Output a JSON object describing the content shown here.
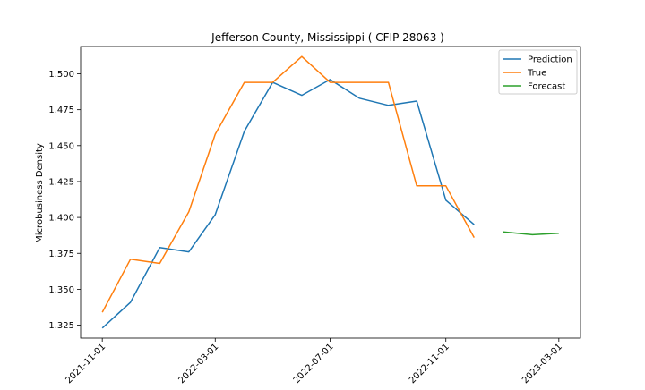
{
  "chart_data": {
    "type": "line",
    "title": "Jefferson County, Mississippi ( CFIP 28063 )",
    "xlabel": "",
    "ylabel": "Microbusiness Density",
    "x_ticks": [
      "2021-11-01",
      "2022-03-01",
      "2022-07-01",
      "2022-11-01",
      "2023-03-01"
    ],
    "y_ticks": [
      "1.325",
      "1.350",
      "1.375",
      "1.400",
      "1.425",
      "1.450",
      "1.475",
      "1.500"
    ],
    "xlim": [
      "2021-10-09",
      "2023-03-24"
    ],
    "ylim": [
      1.316,
      1.519
    ],
    "grid": false,
    "legend_position": "top-right",
    "series": [
      {
        "name": "Prediction",
        "color": "#1f77b4",
        "x": [
          "2021-11-01",
          "2021-12-01",
          "2022-01-01",
          "2022-02-01",
          "2022-03-01",
          "2022-04-01",
          "2022-05-01",
          "2022-06-01",
          "2022-07-01",
          "2022-08-01",
          "2022-09-01",
          "2022-10-01",
          "2022-11-01",
          "2022-12-01"
        ],
        "values": [
          1.323,
          1.341,
          1.379,
          1.376,
          1.402,
          1.46,
          1.494,
          1.485,
          1.496,
          1.483,
          1.478,
          1.481,
          1.412,
          1.395
        ]
      },
      {
        "name": "True",
        "color": "#ff7f0e",
        "x": [
          "2021-11-01",
          "2021-12-01",
          "2022-01-01",
          "2022-02-01",
          "2022-03-01",
          "2022-04-01",
          "2022-05-01",
          "2022-06-01",
          "2022-07-01",
          "2022-08-01",
          "2022-09-01",
          "2022-10-01",
          "2022-11-01",
          "2022-12-01"
        ],
        "values": [
          1.334,
          1.371,
          1.368,
          1.404,
          1.458,
          1.494,
          1.494,
          1.512,
          1.494,
          1.494,
          1.494,
          1.422,
          1.422,
          1.386
        ]
      },
      {
        "name": "Forecast",
        "color": "#2ca02c",
        "x": [
          "2023-01-01",
          "2023-02-01",
          "2023-03-01"
        ],
        "values": [
          1.39,
          1.388,
          1.389
        ]
      }
    ]
  }
}
